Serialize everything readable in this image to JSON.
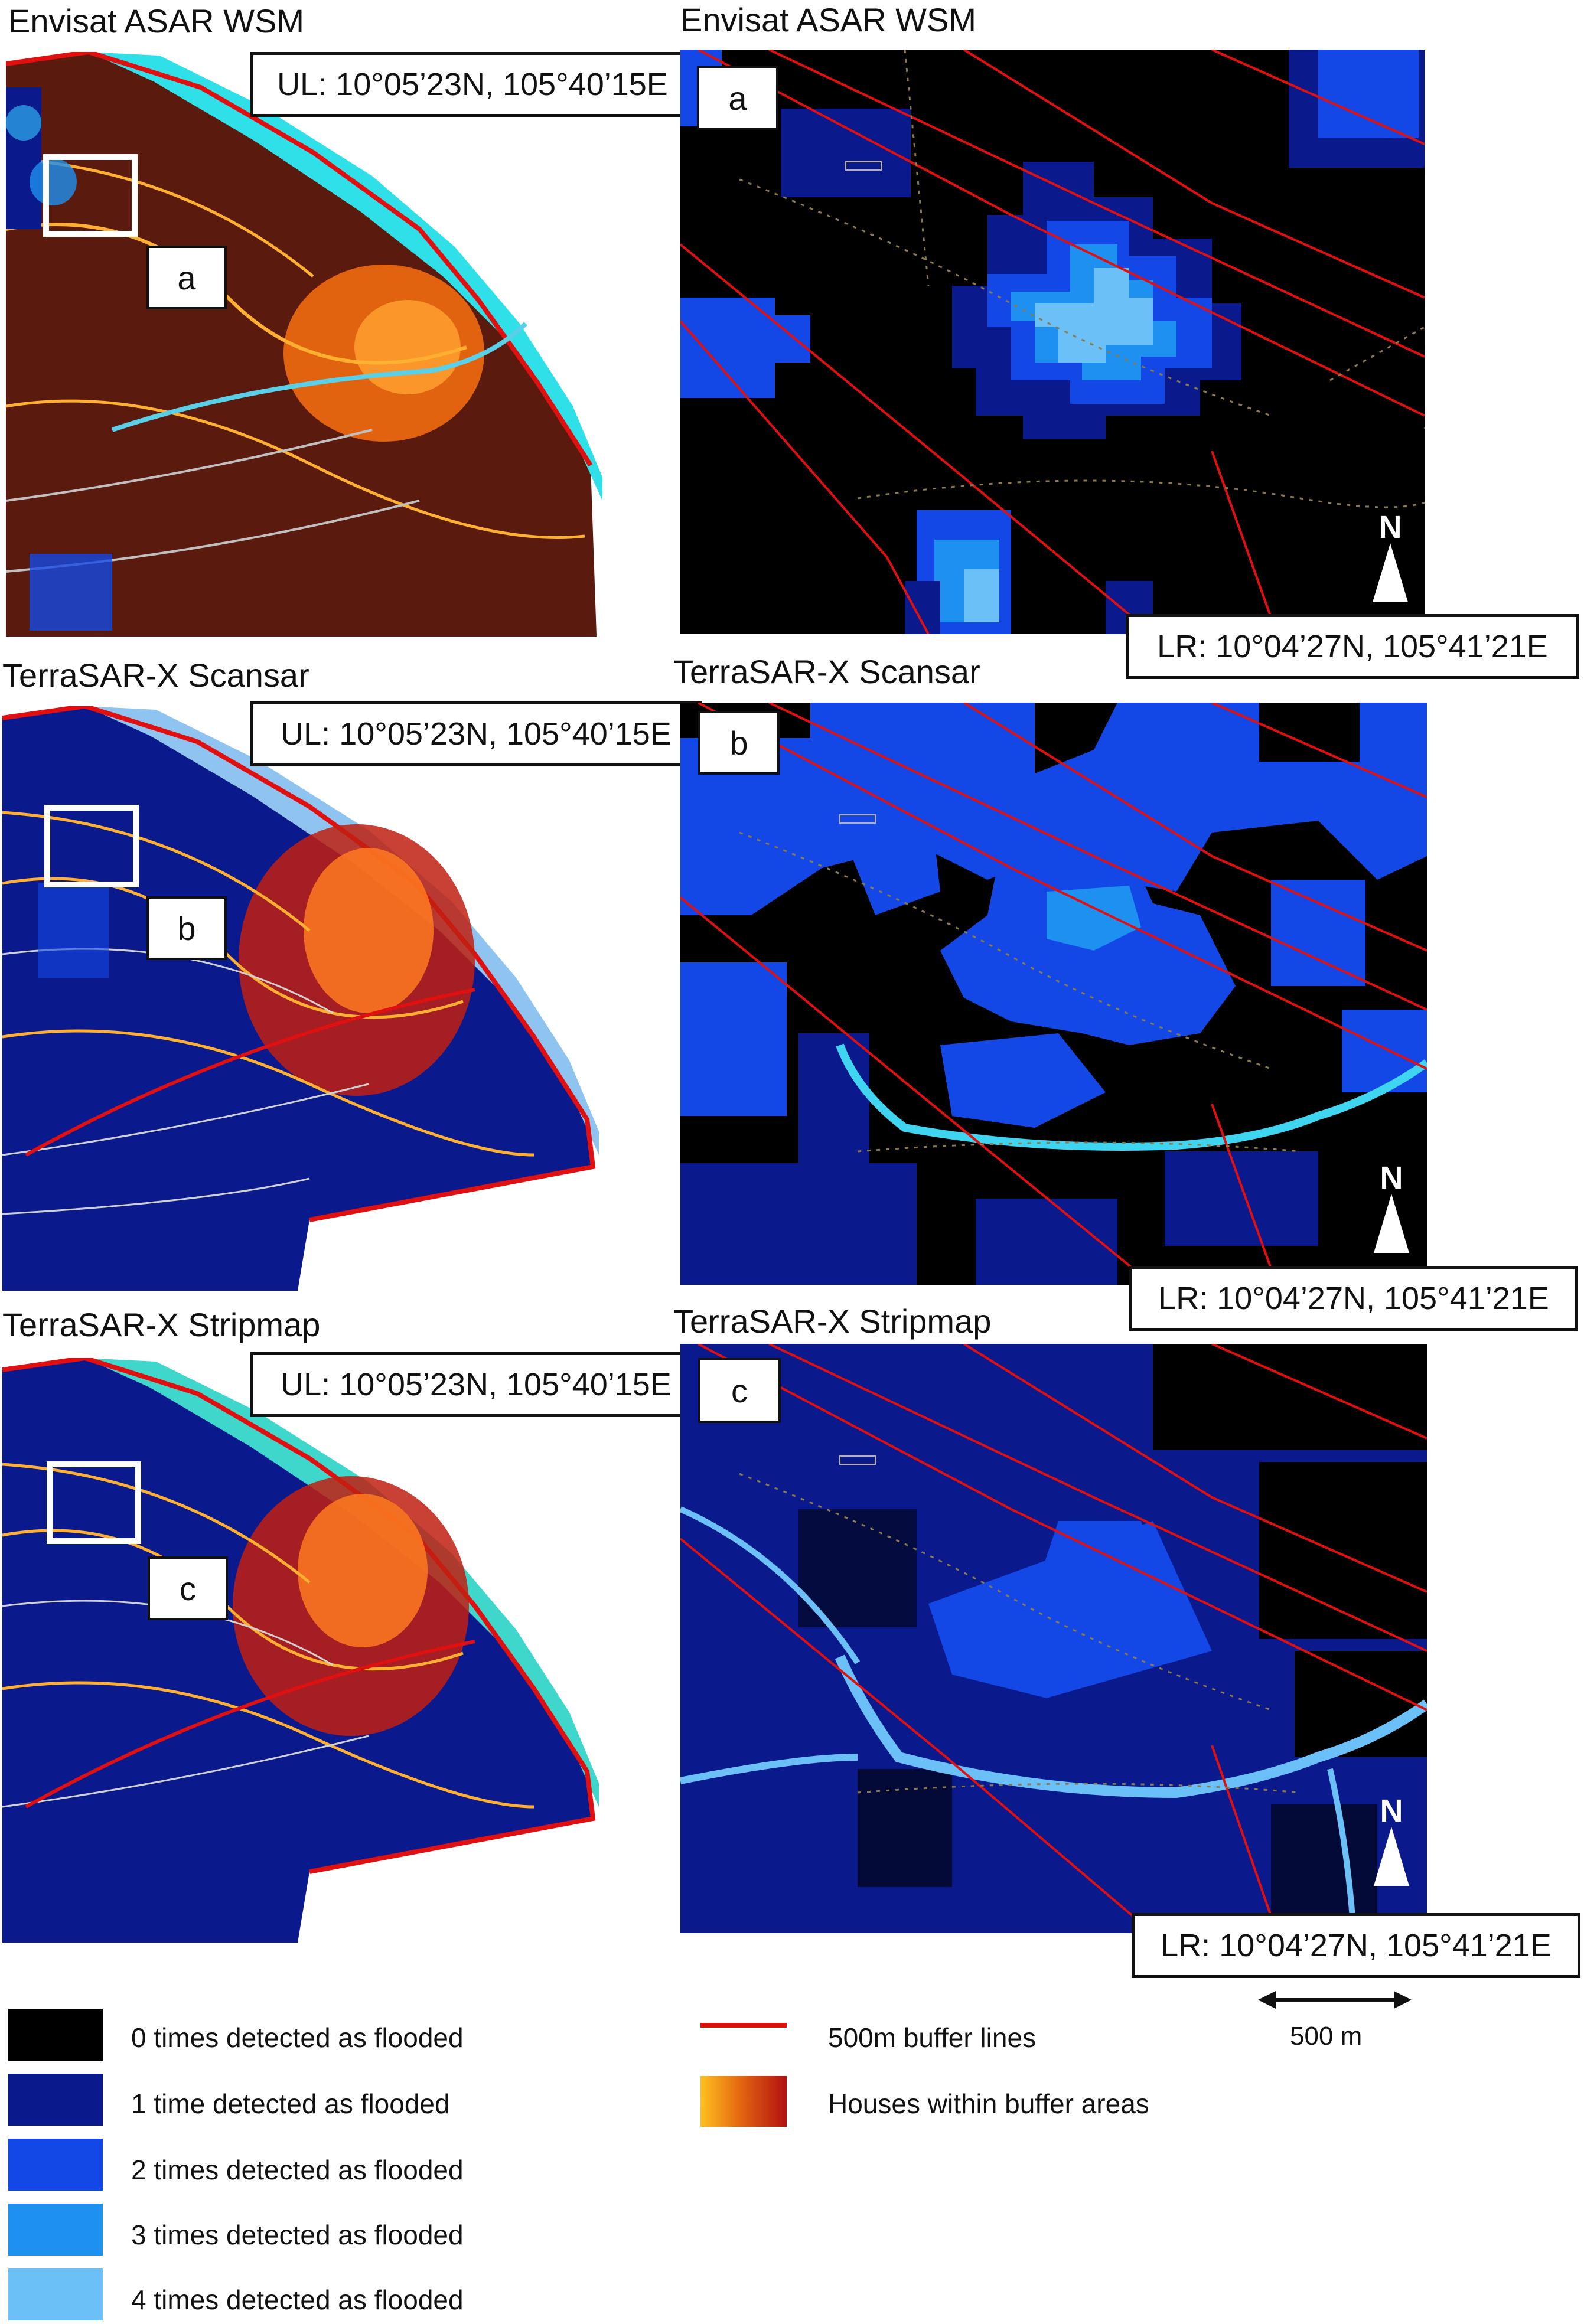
{
  "panels": [
    {
      "id": "a",
      "overview_title": "Envisat ASAR WSM",
      "zoom_title": "Envisat ASAR WSM",
      "ul": "UL: 10°05’23N, 105°40’15E",
      "lr": "LR: 10°04’27N, 105°41’21E",
      "letter": "a",
      "coast_color": "#2fe0e8"
    },
    {
      "id": "b",
      "overview_title": "TerraSAR-X Scansar",
      "zoom_title": "TerraSAR-X Scansar",
      "ul": "UL: 10°05’23N, 105°40’15E",
      "lr": "LR: 10°04’27N, 105°41’21E",
      "letter": "b",
      "coast_color": "#8fc3f0"
    },
    {
      "id": "c",
      "overview_title": "TerraSAR-X Stripmap",
      "zoom_title": "TerraSAR-X Stripmap",
      "ul": "UL: 10°05’23N, 105°40’15E",
      "lr": "LR: 10°04’27N, 105°41’21E",
      "letter": "c",
      "coast_color": "#3fd6cc"
    }
  ],
  "north_label": "N",
  "scale_label": "500 m",
  "legend": {
    "flood_classes": [
      {
        "label": "0 times detected as flooded",
        "color": "#000000"
      },
      {
        "label": "1 time detected as flooded",
        "color": "#0a1a8c"
      },
      {
        "label": "2 times detected as flooded",
        "color": "#1448e6"
      },
      {
        "label": "3 times detected as flooded",
        "color": "#1e90f0"
      },
      {
        "label": "4 times detected as flooded",
        "color": "#6cc0f8"
      }
    ],
    "buffer_label": "500m buffer lines",
    "buffer_color": "#e01010",
    "houses_label": "Houses within buffer areas",
    "houses_gradient": [
      "#ffc020",
      "#e06010",
      "#b01010"
    ]
  }
}
